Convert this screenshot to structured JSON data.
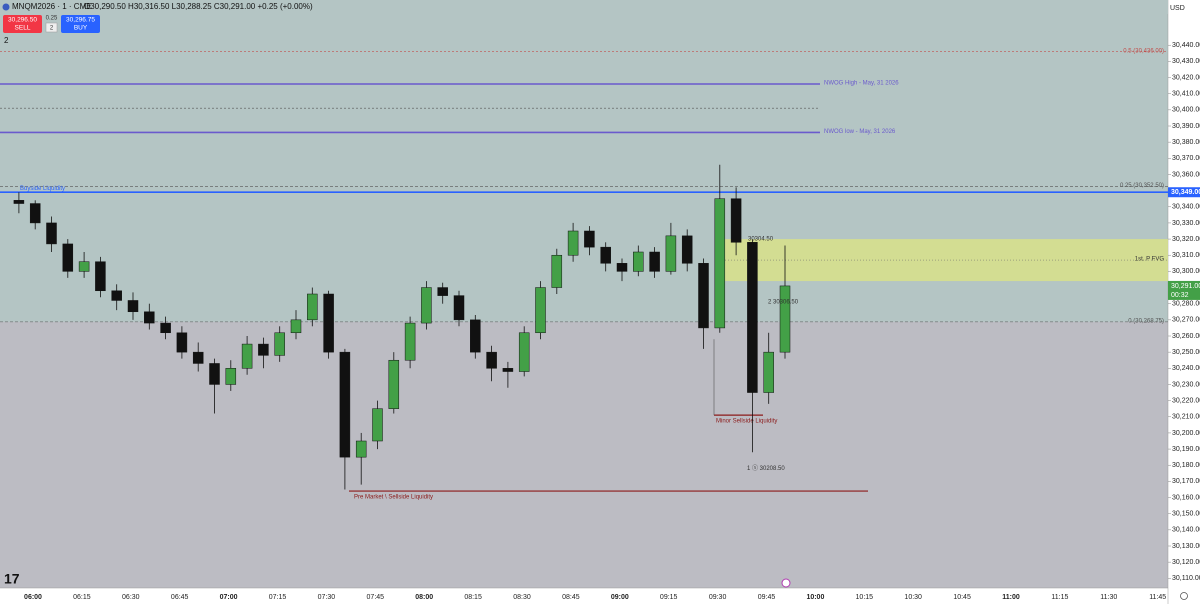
{
  "header": {
    "symbol": "MNQM2026 · 1 · CME",
    "ohlc": "O30,290.50 H30,316.50 L30,288.25 C30,291.00 +0.25 (+0.00%)",
    "sell_price": "30,296.50",
    "sell": "SELL",
    "spread": "0.25",
    "quantity": "2",
    "buy_price": "30,296.75",
    "buy": "BUY",
    "collapse": "2"
  },
  "currency": "USD",
  "price_axis": {
    "ylim": [
      30104,
      30468
    ],
    "yticks": [
      {
        "value": 30110,
        "label": "30,110.00"
      },
      {
        "value": 30120,
        "label": "30,120.00"
      },
      {
        "value": 30130,
        "label": "30,130.00"
      },
      {
        "value": 30140,
        "label": "30,140.00"
      },
      {
        "value": 30150,
        "label": "30,150.00"
      },
      {
        "value": 30160,
        "label": "30,160.00"
      },
      {
        "value": 30170,
        "label": "30,170.00"
      },
      {
        "value": 30180,
        "label": "30,180.00"
      },
      {
        "value": 30190,
        "label": "30,190.00"
      },
      {
        "value": 30200,
        "label": "30,200.00"
      },
      {
        "value": 30210,
        "label": "30,210.00"
      },
      {
        "value": 30220,
        "label": "30,220.00"
      },
      {
        "value": 30230,
        "label": "30,230.00"
      },
      {
        "value": 30240,
        "label": "30,240.00"
      },
      {
        "value": 30250,
        "label": "30,250.00"
      },
      {
        "value": 30260,
        "label": "30,260.00"
      },
      {
        "value": 30270,
        "label": "30,270.00"
      },
      {
        "value": 30280,
        "label": "30,280.00"
      },
      {
        "value": 30300,
        "label": "30,300.00"
      },
      {
        "value": 30310,
        "label": "30,310.00"
      },
      {
        "value": 30320,
        "label": "30,320.00"
      },
      {
        "value": 30330,
        "label": "30,330.00"
      },
      {
        "value": 30340,
        "label": "30,340.00"
      },
      {
        "value": 30360,
        "label": "30,360.00"
      },
      {
        "value": 30370,
        "label": "30,370.00"
      },
      {
        "value": 30380,
        "label": "30,380.00"
      },
      {
        "value": 30390,
        "label": "30,390.00"
      },
      {
        "value": 30400,
        "label": "30,400.00"
      },
      {
        "value": 30410,
        "label": "30,410.00"
      },
      {
        "value": 30420,
        "label": "30,420.00"
      },
      {
        "value": 30430,
        "label": "30,430.00"
      },
      {
        "value": 30440,
        "label": "30,440.00"
      }
    ],
    "level_price": {
      "value": 30349,
      "label": "30,349.00"
    },
    "last_price": {
      "value": 30291,
      "label": "30,291.00"
    },
    "countdown": "00:32"
  },
  "time_axis": [
    "06:00",
    "06:15",
    "06:30",
    "06:45",
    "07:00",
    "07:15",
    "07:30",
    "07:45",
    "08:00",
    "08:15",
    "08:30",
    "08:45",
    "09:00",
    "09:15",
    "09:30",
    "09:45",
    "10:00",
    "10:15",
    "10:30",
    "10:45",
    "11:00",
    "11:15",
    "11:30",
    "11:45"
  ],
  "levels": [
    {
      "price": 30436,
      "label": "0.5 (30,436.00)",
      "color": "#c0504d"
    },
    {
      "price": 30416,
      "label": "NWOG High - May, 31 2026",
      "color": "#6a5acd"
    },
    {
      "price": 30401,
      "color": "#555555"
    },
    {
      "price": 30386,
      "label": "NWOG low - May, 31 2026",
      "color": "#6a5acd"
    },
    {
      "price": 30352.5,
      "label": "0.25 (30,352.50)",
      "color": "#555555"
    },
    {
      "price": 30349,
      "label": "Buyside Liquidity",
      "color": "#2962ff"
    },
    {
      "price": 30268.75,
      "label": "0 (30,268.75)",
      "color": "#555555"
    },
    {
      "price": 30211,
      "label": "Minor Sellside Liquidity",
      "color": "#8b1a1a"
    },
    {
      "price": 30164,
      "label": "Pre Market \\ Sellside Liquidity",
      "color": "#8b1a1a"
    }
  ],
  "fvg": {
    "top": 30320,
    "bottom": 30294,
    "label": "1st. P FVG",
    "color": "#d8e08a"
  },
  "annotations": [
    {
      "price": 30320,
      "label": "30304.50"
    },
    {
      "price": 30281,
      "label": "2   30306.50"
    },
    {
      "price": 30178,
      "label": "1 ⓢ 30208.50"
    }
  ],
  "candles": [
    [
      30344,
      30349,
      30336,
      30342
    ],
    [
      30342,
      30344,
      30326,
      30330
    ],
    [
      30330,
      30334,
      30312,
      30317
    ],
    [
      30317,
      30320,
      30296,
      30300
    ],
    [
      30300,
      30312,
      30296,
      30306
    ],
    [
      30306,
      30309,
      30284,
      30288
    ],
    [
      30288,
      30292,
      30276,
      30282
    ],
    [
      30282,
      30287,
      30270,
      30275
    ],
    [
      30275,
      30280,
      30264,
      30268
    ],
    [
      30268,
      30272,
      30258,
      30262
    ],
    [
      30262,
      30266,
      30246,
      30250
    ],
    [
      30250,
      30256,
      30238,
      30243
    ],
    [
      30243,
      30246,
      30212,
      30230
    ],
    [
      30230,
      30245,
      30226,
      30240
    ],
    [
      30240,
      30260,
      30236,
      30255
    ],
    [
      30255,
      30259,
      30240,
      30248
    ],
    [
      30248,
      30266,
      30244,
      30262
    ],
    [
      30262,
      30276,
      30258,
      30270
    ],
    [
      30270,
      30290,
      30266,
      30286
    ],
    [
      30286,
      30288,
      30246,
      30250
    ],
    [
      30250,
      30252,
      30165,
      30185
    ],
    [
      30185,
      30200,
      30168,
      30195
    ],
    [
      30195,
      30220,
      30190,
      30215
    ],
    [
      30215,
      30250,
      30212,
      30245
    ],
    [
      30245,
      30272,
      30240,
      30268
    ],
    [
      30268,
      30294,
      30264,
      30290
    ],
    [
      30290,
      30293,
      30280,
      30285
    ],
    [
      30285,
      30288,
      30266,
      30270
    ],
    [
      30270,
      30273,
      30246,
      30250
    ],
    [
      30250,
      30254,
      30232,
      30240
    ],
    [
      30240,
      30244,
      30228,
      30238
    ],
    [
      30238,
      30266,
      30235,
      30262
    ],
    [
      30262,
      30294,
      30258,
      30290
    ],
    [
      30290,
      30314,
      30286,
      30310
    ],
    [
      30310,
      30330,
      30306,
      30325
    ],
    [
      30325,
      30328,
      30310,
      30315
    ],
    [
      30315,
      30318,
      30300,
      30305
    ],
    [
      30305,
      30308,
      30294,
      30300
    ],
    [
      30300,
      30316,
      30297,
      30312
    ],
    [
      30312,
      30315,
      30296,
      30300
    ],
    [
      30300,
      30330,
      30298,
      30322
    ],
    [
      30322,
      30326,
      30300,
      30305
    ],
    [
      30305,
      30308,
      30252,
      30265
    ],
    [
      30265,
      30366,
      30262,
      30345
    ],
    [
      30345,
      30352,
      30310,
      30318
    ],
    [
      30318,
      30320,
      30188,
      30225
    ],
    [
      30225,
      30262,
      30218,
      30250
    ],
    [
      30250,
      30316,
      30246,
      30291
    ]
  ]
}
